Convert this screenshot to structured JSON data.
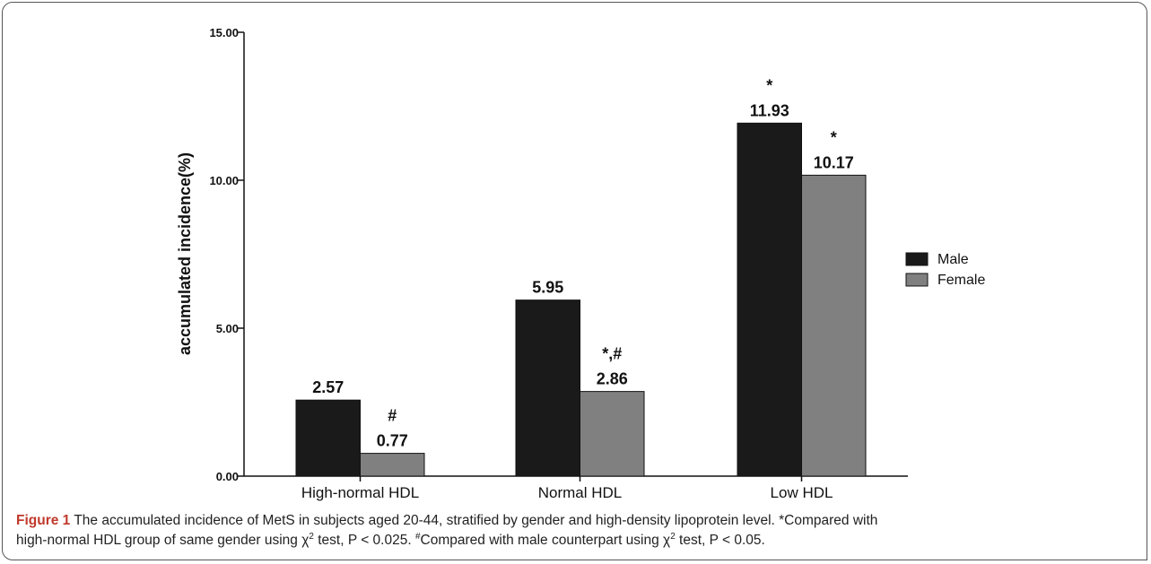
{
  "chart_data": {
    "type": "bar",
    "categories": [
      "High-normal HDL",
      "Normal HDL",
      "Low HDL"
    ],
    "series": [
      {
        "name": "Male",
        "color": "#1a1a1a",
        "values": [
          2.57,
          5.95,
          11.93
        ],
        "labels": [
          "2.57",
          "5.95",
          "11.93"
        ]
      },
      {
        "name": "Female",
        "color": "#808080",
        "values": [
          0.77,
          2.86,
          10.17
        ],
        "labels": [
          "0.77",
          "2.86",
          "10.17"
        ]
      }
    ],
    "annotations": [
      {
        "category": 0,
        "series": 1,
        "text": "#"
      },
      {
        "category": 1,
        "series": 1,
        "text": "*,#"
      },
      {
        "category": 2,
        "series": 0,
        "text": "*"
      },
      {
        "category": 2,
        "series": 1,
        "text": "*"
      }
    ],
    "ylabel": "accumulated incidence(%)",
    "yticks": [
      "0.00",
      "5.00",
      "10.00",
      "15.00"
    ],
    "ylim": [
      0,
      15
    ],
    "grid": false,
    "legend_position": "right"
  },
  "caption": {
    "label": "Figure 1",
    "line1": "The accumulated incidence of MetS in subjects aged 20-44, stratified by gender and high-density lipoprotein level. *Compared with",
    "line2_a": "high-normal HDL group of same gender using χ",
    "sup1": "2",
    "line2_b": " test, P < 0.025. ",
    "sup_hash": "#",
    "line2_c": "Compared with male counterpart using χ",
    "sup2": "2",
    "line2_d": " test, P < 0.05."
  }
}
